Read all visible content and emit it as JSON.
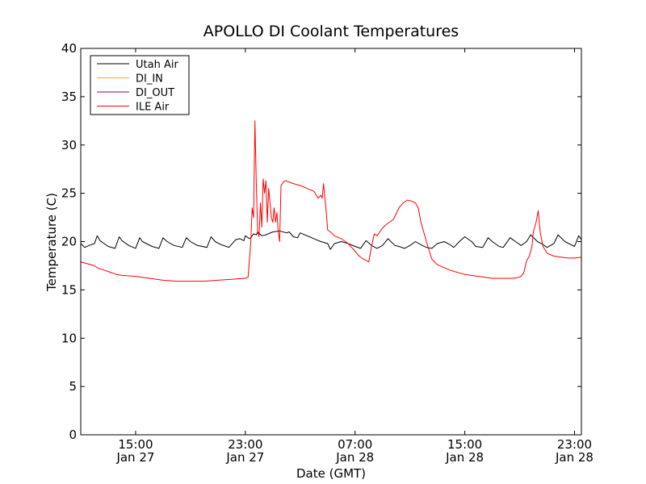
{
  "chart_data": {
    "type": "line",
    "title": "APOLLO DI Coolant Temperatures",
    "xlabel": "Date (GMT)",
    "ylabel": "Temperature (C)",
    "x_unit": "hours since Jan 27 00:00 GMT",
    "xlim": [
      11.0,
      47.5
    ],
    "ylim": [
      0,
      40
    ],
    "grid": false,
    "legend_position": "top-left",
    "yticks": [
      0,
      5,
      10,
      15,
      20,
      25,
      30,
      35,
      40
    ],
    "xticks": [
      {
        "value": 15,
        "line1": "15:00",
        "line2": "Jan 27"
      },
      {
        "value": 23,
        "line1": "23:00",
        "line2": "Jan 27"
      },
      {
        "value": 31,
        "line1": "07:00",
        "line2": "Jan 28"
      },
      {
        "value": 39,
        "line1": "15:00",
        "line2": "Jan 28"
      },
      {
        "value": 47,
        "line1": "23:00",
        "line2": "Jan 28"
      }
    ],
    "series": [
      {
        "name": "Utah Air",
        "color": "#000000",
        "x": [
          11.0,
          11.3,
          11.6,
          12.0,
          12.2,
          12.4,
          13.0,
          13.5,
          13.8,
          14.0,
          14.5,
          15.0,
          15.3,
          15.5,
          16.2,
          16.7,
          17.0,
          17.3,
          17.8,
          18.4,
          18.7,
          19.0,
          19.5,
          20.2,
          20.5,
          20.8,
          21.2,
          21.8,
          22.3,
          22.6,
          22.9,
          23.0,
          23.3,
          23.4,
          23.6,
          23.8,
          23.9,
          24.2,
          24.5,
          25.0,
          25.5,
          26.0,
          26.2,
          26.5,
          26.8,
          27.0,
          27.5,
          28.0,
          28.5,
          29.0,
          29.2,
          29.5,
          30.0,
          30.5,
          31.0,
          31.4,
          31.8,
          32.2,
          32.6,
          33.0,
          33.4,
          33.9,
          34.2,
          34.6,
          35.0,
          35.4,
          35.9,
          36.2,
          36.6,
          37.0,
          37.5,
          37.9,
          38.2,
          38.6,
          39.0,
          39.5,
          39.8,
          40.3,
          40.7,
          41.0,
          41.5,
          41.8,
          42.3,
          42.7,
          43.1,
          43.5,
          43.8,
          44.3,
          44.7,
          45.0,
          45.5,
          45.8,
          46.3,
          46.7,
          47.0,
          47.3,
          47.5
        ],
        "values": [
          19.8,
          19.4,
          19.6,
          19.8,
          20.6,
          20.1,
          19.5,
          19.3,
          20.5,
          20.1,
          19.6,
          19.3,
          20.4,
          20.0,
          19.5,
          19.3,
          20.4,
          20.0,
          19.6,
          19.4,
          20.4,
          20.0,
          19.6,
          19.4,
          20.5,
          20.0,
          19.7,
          19.4,
          20.2,
          20.3,
          20.1,
          20.6,
          20.3,
          20.4,
          20.8,
          20.7,
          21.0,
          20.6,
          20.7,
          21.0,
          21.1,
          20.9,
          21.0,
          20.5,
          20.4,
          20.9,
          20.6,
          20.3,
          20.0,
          19.8,
          19.2,
          19.8,
          20.0,
          19.8,
          19.5,
          19.3,
          20.1,
          19.6,
          19.3,
          19.6,
          20.3,
          19.6,
          19.5,
          19.3,
          19.6,
          20.0,
          19.6,
          19.4,
          19.3,
          19.8,
          20.0,
          19.7,
          19.4,
          20.0,
          20.5,
          20.0,
          19.5,
          19.4,
          20.4,
          20.0,
          19.5,
          19.4,
          20.4,
          20.0,
          19.6,
          20.0,
          20.7,
          20.0,
          19.7,
          19.4,
          19.8,
          20.7,
          20.0,
          19.7,
          19.5,
          20.6,
          20.2
        ]
      },
      {
        "name": "DI_IN",
        "color": "#e8b010",
        "x": [],
        "values": []
      },
      {
        "name": "DI_OUT",
        "color": "#800080",
        "x": [],
        "values": []
      },
      {
        "name": "ILE Air",
        "color": "#ff0000",
        "x": [
          11.0,
          11.5,
          12.0,
          12.3,
          12.6,
          13.0,
          13.6,
          14.0,
          15.0,
          16.0,
          17.0,
          18.0,
          19.0,
          20.0,
          21.0,
          22.0,
          23.0,
          23.2,
          23.4,
          23.5,
          23.6,
          23.7,
          23.8,
          23.9,
          24.0,
          24.1,
          24.2,
          24.3,
          24.4,
          24.5,
          24.6,
          24.7,
          24.8,
          24.9,
          25.0,
          25.1,
          25.2,
          25.3,
          25.4,
          25.5,
          25.6,
          25.7,
          25.8,
          25.9,
          26.0,
          26.1,
          26.2,
          26.3,
          26.5,
          27.0,
          27.5,
          28.0,
          28.3,
          28.5,
          28.6,
          28.7,
          28.8,
          28.9,
          29.0,
          29.2,
          29.5,
          30.0,
          30.5,
          31.0,
          31.3,
          31.6,
          32.0,
          32.2,
          32.4,
          32.6,
          32.8,
          33.0,
          33.3,
          33.8,
          34.2,
          34.5,
          34.8,
          35.1,
          35.4,
          35.6,
          35.8,
          36.0,
          36.3,
          36.6,
          37.0,
          37.5,
          38.0,
          38.5,
          39.0,
          40.0,
          41.0,
          42.0,
          42.6,
          42.9,
          43.1,
          43.3,
          43.5,
          43.7,
          43.9,
          44.0,
          44.1,
          44.2,
          44.35,
          44.5,
          44.7,
          45.0,
          45.5,
          46.0,
          46.5,
          47.0,
          47.5
        ],
        "values": [
          17.9,
          17.7,
          17.5,
          17.2,
          17.1,
          16.9,
          16.6,
          16.5,
          16.4,
          16.2,
          16.0,
          15.9,
          15.9,
          15.9,
          16.0,
          16.1,
          16.2,
          16.3,
          20.0,
          23.5,
          22.5,
          32.5,
          26.0,
          21.0,
          20.5,
          24.0,
          21.5,
          26.5,
          25.0,
          26.3,
          22.0,
          25.5,
          24.0,
          22.5,
          22.0,
          23.5,
          22.0,
          23.0,
          21.0,
          20.0,
          25.8,
          26.0,
          26.2,
          26.3,
          26.3,
          26.2,
          26.2,
          26.1,
          26.0,
          25.8,
          25.5,
          25.2,
          24.5,
          24.8,
          24.5,
          26.0,
          24.5,
          23.0,
          21.2,
          21.0,
          20.6,
          20.3,
          19.8,
          19.0,
          18.5,
          18.2,
          17.9,
          19.5,
          20.8,
          20.6,
          21.0,
          21.4,
          21.8,
          22.3,
          23.5,
          24.0,
          24.3,
          24.2,
          24.0,
          23.5,
          22.0,
          21.0,
          19.5,
          18.2,
          17.6,
          17.3,
          17.0,
          16.8,
          16.6,
          16.4,
          16.2,
          16.2,
          16.2,
          16.3,
          16.4,
          16.8,
          18.0,
          18.5,
          19.5,
          21.0,
          21.5,
          22.0,
          23.2,
          21.0,
          19.5,
          18.8,
          18.5,
          18.4,
          18.3,
          18.3,
          18.4
        ]
      }
    ]
  }
}
